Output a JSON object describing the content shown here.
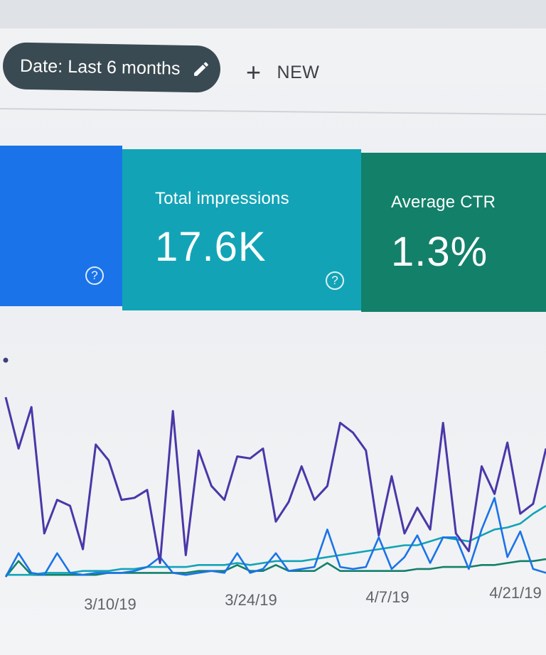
{
  "toolbar": {
    "date_label": "Date: Last 6 months",
    "new_label": "NEW",
    "icons": {
      "edit": "pencil-icon",
      "add": "plus-icon"
    }
  },
  "cards": [
    {
      "name": "clicks",
      "label": "",
      "value": "",
      "color": "#1a73e8"
    },
    {
      "name": "impressions",
      "label": "Total impressions",
      "value": "17.6K",
      "color": "#12a4b6"
    },
    {
      "name": "ctr",
      "label": "Average CTR",
      "value": "1.3%",
      "color": "#13806a"
    }
  ],
  "chart_data": {
    "type": "line",
    "x_tick_labels": [
      "3/10/19",
      "3/24/19",
      "4/7/19",
      "4/21/19"
    ],
    "grid": false,
    "series": [
      {
        "color": "#4a37a8",
        "values": [
          9.1,
          6.5,
          8.6,
          2.2,
          3.9,
          3.6,
          1.4,
          6.7,
          5.9,
          3.9,
          4.0,
          4.4,
          0.7,
          8.4,
          1.1,
          6.4,
          4.6,
          3.9,
          6.1,
          6.0,
          6.5,
          2.8,
          3.8,
          5.6,
          3.9,
          4.6,
          7.8,
          7.3,
          6.4,
          2.1,
          5.1,
          2.2,
          3.5,
          2.4,
          7.8,
          2.2,
          1.3,
          5.6,
          4.2,
          6.8,
          3.2,
          3.7,
          6.5
        ]
      },
      {
        "color": "#1a73e8",
        "values": [
          0,
          1.2,
          0.2,
          0.1,
          1.2,
          0.2,
          0.1,
          0.2,
          0.2,
          0.2,
          0.3,
          0.5,
          1.0,
          0.2,
          0.1,
          0.2,
          0.3,
          0.2,
          1.2,
          0.2,
          0.4,
          1.2,
          0.3,
          0.4,
          0.5,
          2.4,
          0.5,
          0.4,
          0.5,
          2.0,
          0.4,
          1.0,
          2.1,
          0.7,
          2.0,
          2.0,
          0.4,
          2.4,
          4.0,
          1.0,
          2.3,
          0.4,
          0.2
        ]
      },
      {
        "color": "#12a4b6",
        "values": [
          0.1,
          0.1,
          0.1,
          0.2,
          0.2,
          0.2,
          0.3,
          0.3,
          0.3,
          0.4,
          0.4,
          0.5,
          0.5,
          0.5,
          0.5,
          0.6,
          0.6,
          0.6,
          0.7,
          0.6,
          0.7,
          0.8,
          0.8,
          0.8,
          0.9,
          1.0,
          1.1,
          1.2,
          1.3,
          1.4,
          1.5,
          1.6,
          1.6,
          1.8,
          2.0,
          1.9,
          1.8,
          2.1,
          2.4,
          2.5,
          2.7,
          3.2,
          3.6
        ]
      },
      {
        "color": "#13806a",
        "values": [
          0,
          0.8,
          0.1,
          0.1,
          0.1,
          0.1,
          0.1,
          0.1,
          0.2,
          0.2,
          0.2,
          0.2,
          0.2,
          0.2,
          0.2,
          0.3,
          0.3,
          0.3,
          0.6,
          0.3,
          0.3,
          0.6,
          0.3,
          0.3,
          0.3,
          0.7,
          0.3,
          0.3,
          0.3,
          0.3,
          0.3,
          0.3,
          0.4,
          0.4,
          0.5,
          0.5,
          0.5,
          0.6,
          0.6,
          0.7,
          0.8,
          0.8,
          0.9
        ]
      }
    ]
  }
}
